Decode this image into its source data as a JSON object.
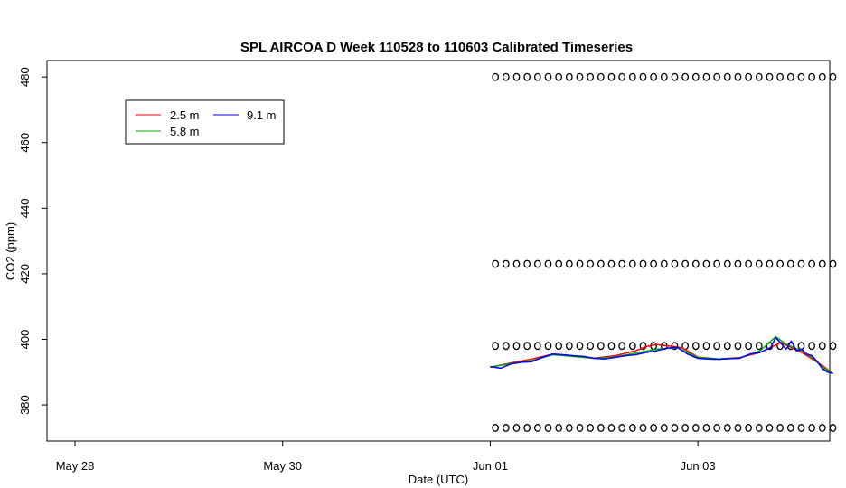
{
  "chart_data": {
    "type": "line",
    "title": "SPL AIRCOA D  Week 110528 to 110603  Calibrated Timeseries",
    "xlabel": "Date (UTC)",
    "ylabel": "CO2 (ppm)",
    "x_ticks": [
      {
        "label": "May 28",
        "day": 0
      },
      {
        "label": "May 30",
        "day": 2
      },
      {
        "label": "Jun 01",
        "day": 4
      },
      {
        "label": "Jun 03",
        "day": 6
      }
    ],
    "y_ticks": [
      380,
      400,
      420,
      440,
      460,
      480
    ],
    "xlim_days": [
      -0.27,
      7.27
    ],
    "ylim": [
      369,
      485
    ],
    "x_origin_date": "May 28",
    "legend": {
      "position": "top-left",
      "entries": [
        {
          "name": "2.5 m",
          "color": "#ff0000"
        },
        {
          "name": "5.8 m",
          "color": "#00aa00"
        },
        {
          "name": "9.1 m",
          "color": "#0000ff"
        }
      ]
    },
    "series": [
      {
        "name": "2.5 m",
        "color": "#ff0000",
        "points": [
          [
            4.0,
            391.5
          ],
          [
            4.2,
            392.8
          ],
          [
            4.4,
            394.0
          ],
          [
            4.6,
            395.5
          ],
          [
            4.8,
            395.0
          ],
          [
            5.0,
            394.3
          ],
          [
            5.2,
            395.0
          ],
          [
            5.4,
            396.5
          ],
          [
            5.5,
            397.8
          ],
          [
            5.6,
            398.4
          ],
          [
            5.75,
            397.9
          ],
          [
            5.85,
            397.4
          ],
          [
            6.0,
            394.6
          ],
          [
            6.2,
            394.0
          ],
          [
            6.4,
            394.4
          ],
          [
            6.6,
            396.0
          ],
          [
            6.8,
            399.0
          ],
          [
            7.0,
            396.0
          ],
          [
            7.1,
            394.0
          ],
          [
            7.2,
            392.0
          ],
          [
            7.3,
            389.5
          ]
        ]
      },
      {
        "name": "5.8 m",
        "color": "#00aa00",
        "points": [
          [
            4.0,
            391.5
          ],
          [
            4.2,
            392.6
          ],
          [
            4.4,
            393.5
          ],
          [
            4.6,
            395.3
          ],
          [
            4.8,
            394.8
          ],
          [
            5.0,
            394.2
          ],
          [
            5.2,
            394.6
          ],
          [
            5.4,
            395.8
          ],
          [
            5.6,
            397.0
          ],
          [
            5.8,
            397.5
          ],
          [
            6.0,
            394.5
          ],
          [
            6.2,
            394.0
          ],
          [
            6.4,
            394.3
          ],
          [
            6.6,
            396.5
          ],
          [
            6.75,
            400.8
          ],
          [
            6.85,
            398.5
          ],
          [
            7.0,
            396.5
          ],
          [
            7.1,
            394.5
          ],
          [
            7.2,
            391.5
          ],
          [
            7.3,
            389.5
          ]
        ]
      },
      {
        "name": "9.1 m",
        "color": "#0000ff",
        "points": [
          [
            4.0,
            391.7
          ],
          [
            4.1,
            391.2
          ],
          [
            4.2,
            392.5
          ],
          [
            4.3,
            393.0
          ],
          [
            4.4,
            393.2
          ],
          [
            4.5,
            394.5
          ],
          [
            4.6,
            395.5
          ],
          [
            4.7,
            395.3
          ],
          [
            4.8,
            395.0
          ],
          [
            4.9,
            394.8
          ],
          [
            5.0,
            394.2
          ],
          [
            5.1,
            394.0
          ],
          [
            5.2,
            394.5
          ],
          [
            5.3,
            395.0
          ],
          [
            5.4,
            395.3
          ],
          [
            5.5,
            396.0
          ],
          [
            5.6,
            396.5
          ],
          [
            5.7,
            397.3
          ],
          [
            5.8,
            397.6
          ],
          [
            5.9,
            395.5
          ],
          [
            6.0,
            394.2
          ],
          [
            6.1,
            394.0
          ],
          [
            6.2,
            393.9
          ],
          [
            6.3,
            394.1
          ],
          [
            6.4,
            394.2
          ],
          [
            6.5,
            395.5
          ],
          [
            6.6,
            396.0
          ],
          [
            6.7,
            397.5
          ],
          [
            6.75,
            400.5
          ],
          [
            6.8,
            398.8
          ],
          [
            6.85,
            397.0
          ],
          [
            6.9,
            399.5
          ],
          [
            6.95,
            396.5
          ],
          [
            7.0,
            397.0
          ],
          [
            7.05,
            395.5
          ],
          [
            7.1,
            395.0
          ],
          [
            7.15,
            393.2
          ],
          [
            7.2,
            391.0
          ],
          [
            7.25,
            390.0
          ],
          [
            7.3,
            389.6
          ]
        ]
      },
      {
        "name": "",
        "type": "scatter",
        "color": "#000000",
        "marker": "open-circle",
        "levels": [
          373,
          398,
          423,
          480
        ],
        "x_start": 4.05,
        "x_end": 7.3,
        "points_per_level": 33
      }
    ]
  }
}
